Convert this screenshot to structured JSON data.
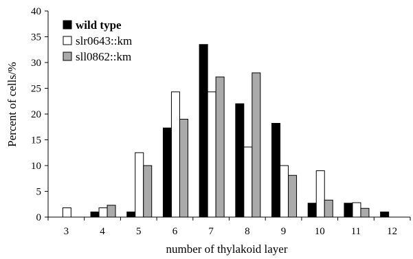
{
  "chart_data": {
    "type": "bar",
    "title": "",
    "xlabel": "number of thylakoid layer",
    "ylabel": "Percent of cells/%",
    "ylim": [
      0,
      40
    ],
    "yticks": [
      "0",
      "5",
      "10",
      "15",
      "20",
      "25",
      "30",
      "35",
      "40"
    ],
    "categories": [
      "3",
      "4",
      "5",
      "6",
      "7",
      "8",
      "9",
      "10",
      "11",
      "12"
    ],
    "grid": false,
    "legend_position": "top-left",
    "series": [
      {
        "name": "wild type",
        "color": "#000000",
        "values": [
          0,
          1,
          1,
          17.3,
          33.5,
          22,
          18.2,
          2.7,
          2.7,
          1
        ]
      },
      {
        "name": "slr0643::km",
        "color": "#ffffff",
        "values": [
          1.8,
          1.8,
          12.5,
          24.3,
          24.3,
          13.6,
          10,
          9,
          2.8,
          0
        ]
      },
      {
        "name": "sll0862::km",
        "color": "#aaaaaa",
        "values": [
          0,
          2.3,
          10,
          19,
          27.2,
          28,
          8.1,
          3.3,
          1.7,
          0
        ]
      }
    ]
  }
}
